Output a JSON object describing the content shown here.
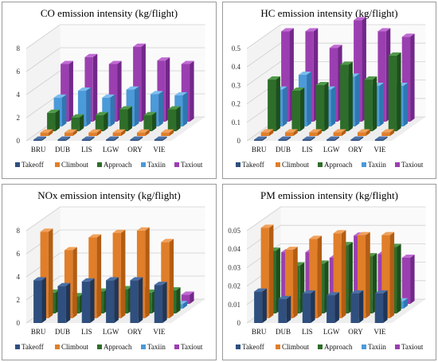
{
  "colors": {
    "Takeoff": [
      "#2f4f7f",
      "#1f3659",
      "#4a6fa6"
    ],
    "Climbout": [
      "#e07e2a",
      "#b35d13",
      "#f1a15a"
    ],
    "Approach": [
      "#2e6e2a",
      "#1d4f1b",
      "#4f9a49"
    ],
    "Taxiin": [
      "#4b9ad9",
      "#2f77b1",
      "#7cbdf0"
    ],
    "Taxiout": [
      "#9b3fb0",
      "#72278a",
      "#c06ad3"
    ]
  },
  "chart_data": [
    {
      "type": "bar",
      "title": "CO emission intensity (kg/flight)",
      "categories": [
        "BRU",
        "DUB",
        "LIS",
        "LGW",
        "ORY",
        "VIE"
      ],
      "ylim": [
        0,
        8
      ],
      "yticks": [
        "0",
        "2",
        "4",
        "6",
        "8"
      ],
      "series": [
        {
          "name": "Takeoff",
          "values": [
            0.05,
            0.05,
            0.05,
            0.05,
            0.05,
            0.05
          ]
        },
        {
          "name": "Climbout",
          "values": [
            0.3,
            0.3,
            0.3,
            0.3,
            0.3,
            0.3
          ]
        },
        {
          "name": "Approach",
          "values": [
            1.6,
            1.2,
            1.4,
            1.9,
            1.4,
            1.9
          ]
        },
        {
          "name": "Taxiin",
          "values": [
            2.5,
            3.1,
            2.5,
            3.2,
            2.8,
            2.7
          ]
        },
        {
          "name": "Taxiout",
          "values": [
            5.0,
            5.6,
            5.0,
            6.5,
            5.3,
            5.0
          ]
        }
      ]
    },
    {
      "type": "bar",
      "title": "HC emission intensity (kg/flight)",
      "categories": [
        "BRU",
        "DUB",
        "LIS",
        "LGW",
        "ORY",
        "VIE"
      ],
      "ylim": [
        0,
        0.5
      ],
      "yticks": [
        "0",
        "0.1",
        "0.2",
        "0.3",
        "0.4",
        "0.5"
      ],
      "series": [
        {
          "name": "Takeoff",
          "values": [
            0.003,
            0.003,
            0.003,
            0.003,
            0.003,
            0.003
          ]
        },
        {
          "name": "Climbout",
          "values": [
            0.02,
            0.02,
            0.02,
            0.02,
            0.02,
            0.02
          ]
        },
        {
          "name": "Approach",
          "values": [
            0.28,
            0.22,
            0.25,
            0.36,
            0.28,
            0.41
          ]
        },
        {
          "name": "Taxiin",
          "values": [
            0.2,
            0.28,
            0.2,
            0.27,
            0.22,
            0.22
          ]
        },
        {
          "name": "Taxiout",
          "values": [
            0.49,
            0.49,
            0.4,
            0.55,
            0.49,
            0.46
          ]
        }
      ]
    },
    {
      "type": "bar",
      "title": "NOx emission intensity (kg/flight)",
      "categories": [
        "BRU",
        "DUB",
        "LIS",
        "LGW",
        "ORY",
        "VIE"
      ],
      "ylim": [
        0,
        8
      ],
      "yticks": [
        "0",
        "2",
        "4",
        "6",
        "8"
      ],
      "series": [
        {
          "name": "Takeoff",
          "values": [
            3.7,
            3.2,
            3.6,
            3.7,
            3.7,
            3.3
          ]
        },
        {
          "name": "Climbout",
          "values": [
            7.5,
            5.9,
            7.0,
            7.4,
            7.6,
            6.6
          ]
        },
        {
          "name": "Approach",
          "values": [
            1.8,
            1.5,
            1.9,
            2.1,
            1.8,
            2.0
          ]
        },
        {
          "name": "Taxiin",
          "values": [
            0.4,
            0.6,
            0.4,
            0.6,
            0.5,
            0.4
          ]
        },
        {
          "name": "Taxiout",
          "values": [
            0.8,
            1.0,
            0.8,
            1.2,
            0.9,
            0.8
          ]
        }
      ]
    },
    {
      "type": "bar",
      "title": "PM emission intensity (kg/flight)",
      "categories": [
        "BRU",
        "DUB",
        "LIS",
        "LGW",
        "ORY",
        "VIE"
      ],
      "ylim": [
        0,
        0.05
      ],
      "yticks": [
        "0",
        "0.01",
        "0.02",
        "0.03",
        "0.04",
        "0.05"
      ],
      "series": [
        {
          "name": "Takeoff",
          "values": [
            0.017,
            0.013,
            0.016,
            0.015,
            0.016,
            0.016
          ]
        },
        {
          "name": "Climbout",
          "values": [
            0.049,
            0.037,
            0.043,
            0.046,
            0.045,
            0.045
          ]
        },
        {
          "name": "Approach",
          "values": [
            0.034,
            0.026,
            0.027,
            0.037,
            0.031,
            0.036
          ]
        },
        {
          "name": "Taxiin",
          "values": [
            0.004,
            0.005,
            0.004,
            0.005,
            0.004,
            0.004
          ]
        },
        {
          "name": "Taxiout",
          "values": [
            0.028,
            0.028,
            0.025,
            0.037,
            0.027,
            0.025
          ]
        }
      ]
    }
  ]
}
